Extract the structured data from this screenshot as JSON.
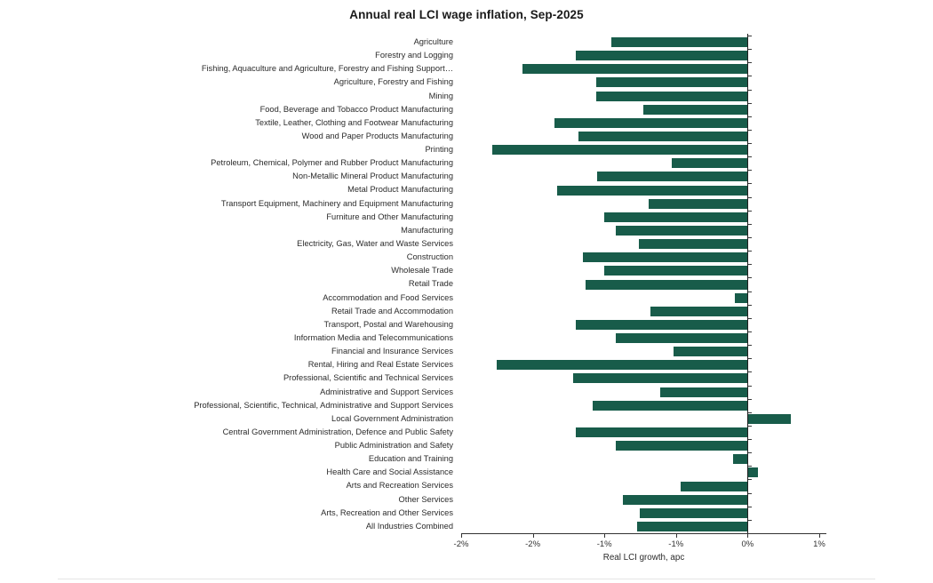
{
  "title": "Annual real LCI wage inflation, Sep-2025",
  "chart_data": {
    "type": "bar",
    "orientation": "horizontal",
    "title": "Annual real LCI wage inflation, Sep-2025",
    "xlabel": "Real LCI growth, apc",
    "unit": "percent",
    "xlim": [
      -2.0,
      0.55
    ],
    "grid": false,
    "legend": "none",
    "bar_color": "#185C4A",
    "x_ticks": [
      {
        "value": -2.0,
        "label": "-2%"
      },
      {
        "value": -1.5,
        "label": "-2%"
      },
      {
        "value": -1.0,
        "label": "-1%"
      },
      {
        "value": -0.5,
        "label": "-1%"
      },
      {
        "value": 0.0,
        "label": "0%"
      },
      {
        "value": 0.5,
        "label": "1%"
      }
    ],
    "categories": [
      "Agriculture",
      "Forestry and Logging",
      "Fishing, Aquaculture and Agriculture, Forestry and Fishing Support…",
      "Agriculture, Forestry and Fishing",
      "Mining",
      "Food, Beverage and Tobacco Product Manufacturing",
      "Textile, Leather, Clothing and Footwear Manufacturing",
      "Wood and Paper Products Manufacturing",
      "Printing",
      "Petroleum, Chemical, Polymer and Rubber Product Manufacturing",
      "Non-Metallic Mineral Product Manufacturing",
      "Metal Product Manufacturing",
      "Transport Equipment, Machinery and Equipment Manufacturing",
      "Furniture and Other Manufacturing",
      "Manufacturing",
      "Electricity, Gas, Water and Waste Services",
      "Construction",
      "Wholesale Trade",
      "Retail Trade",
      "Accommodation and Food Services",
      "Retail Trade and Accommodation",
      "Transport, Postal and Warehousing",
      "Information Media and Telecommunications",
      "Financial and Insurance Services",
      "Rental, Hiring and Real Estate Services",
      "Professional, Scientific and Technical Services",
      "Administrative and Support Services",
      "Professional, Scientific, Technical, Administrative and Support Services",
      "Local Government Administration",
      "Central Government Administration, Defence and Public Safety",
      "Public Administration and Safety",
      "Education and Training",
      "Health Care and Social Assistance",
      "Arts and Recreation Services",
      "Other Services",
      "Arts, Recreation and Other Services",
      "All Industries Combined"
    ],
    "values": [
      -0.95,
      -1.2,
      -1.57,
      -1.06,
      -1.06,
      -0.73,
      -1.35,
      -1.18,
      -1.78,
      -0.53,
      -1.05,
      -1.33,
      -0.69,
      -1.0,
      -0.92,
      -0.76,
      -1.15,
      -1.0,
      -1.13,
      -0.09,
      -0.68,
      -1.2,
      -0.92,
      -0.52,
      -1.75,
      -1.22,
      -0.61,
      -1.08,
      0.3,
      -1.2,
      -0.92,
      -0.1,
      0.07,
      -0.47,
      -0.87,
      -0.75,
      -0.77
    ]
  }
}
